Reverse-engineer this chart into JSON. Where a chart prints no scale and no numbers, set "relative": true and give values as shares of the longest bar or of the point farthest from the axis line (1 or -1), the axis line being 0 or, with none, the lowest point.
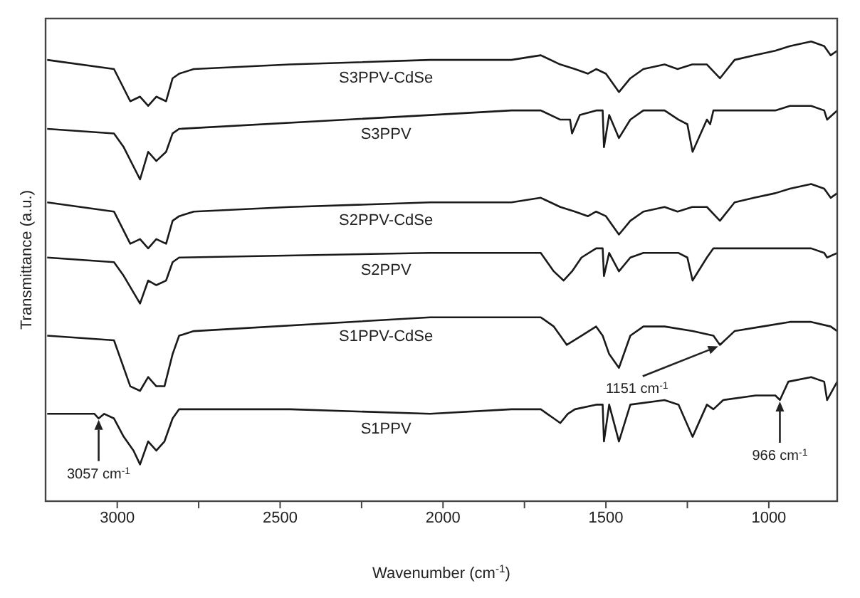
{
  "chart_data": {
    "type": "line",
    "relative": true,
    "xlabel": "Wavenumber (cm$^{-1}$)",
    "ylabel": "Transmittance (a.u.)",
    "xlim": [
      3220,
      790
    ],
    "xticks": [
      3000,
      {
        "value": 2750,
        "label": null
      },
      2500,
      {
        "value": 2250,
        "label": null
      },
      2000,
      {
        "value": 1750,
        "label": null
      },
      1500,
      {
        "value": 1250,
        "label": null
      },
      1000
    ],
    "series": [
      {
        "name": "S3PPV-CdSe",
        "color": "#1a1a1a",
        "x": [
          3215,
          3010,
          2960,
          2930,
          2905,
          2880,
          2850,
          2830,
          2810,
          2765,
          2470,
          2040,
          1790,
          1700,
          1640,
          1595,
          1555,
          1530,
          1500,
          1460,
          1425,
          1385,
          1320,
          1280,
          1235,
          1190,
          1150,
          1105,
          1045,
          980,
          935,
          870,
          830,
          810,
          790
        ],
        "values": [
          0.96,
          0.94,
          0.87,
          0.88,
          0.86,
          0.88,
          0.87,
          0.92,
          0.93,
          0.94,
          0.95,
          0.96,
          0.96,
          0.97,
          0.95,
          0.94,
          0.93,
          0.94,
          0.93,
          0.89,
          0.92,
          0.94,
          0.95,
          0.94,
          0.95,
          0.95,
          0.92,
          0.96,
          0.97,
          0.98,
          0.99,
          1.0,
          0.99,
          0.97,
          0.98
        ]
      },
      {
        "name": "S3PPV",
        "color": "#1a1a1a",
        "x": [
          3215,
          3010,
          2980,
          2930,
          2905,
          2880,
          2850,
          2830,
          2810,
          2040,
          1790,
          1700,
          1640,
          1610,
          1604,
          1580,
          1530,
          1510,
          1506,
          1490,
          1460,
          1425,
          1385,
          1320,
          1277,
          1250,
          1234,
          1190,
          1180,
          1170,
          1105,
          1020,
          980,
          935,
          870,
          830,
          821,
          790
        ],
        "values": [
          0.81,
          0.8,
          0.77,
          0.7,
          0.76,
          0.74,
          0.76,
          0.8,
          0.81,
          0.84,
          0.85,
          0.85,
          0.83,
          0.83,
          0.8,
          0.84,
          0.85,
          0.85,
          0.77,
          0.84,
          0.79,
          0.83,
          0.85,
          0.85,
          0.83,
          0.82,
          0.76,
          0.83,
          0.82,
          0.85,
          0.85,
          0.85,
          0.85,
          0.86,
          0.86,
          0.85,
          0.83,
          0.85
        ]
      },
      {
        "name": "S2PPV-CdSe",
        "color": "#1a1a1a",
        "x": [
          3215,
          3010,
          2960,
          2930,
          2905,
          2880,
          2850,
          2830,
          2810,
          2765,
          2470,
          2040,
          1790,
          1700,
          1640,
          1595,
          1555,
          1530,
          1500,
          1460,
          1425,
          1385,
          1320,
          1280,
          1235,
          1190,
          1150,
          1105,
          1045,
          980,
          935,
          870,
          830,
          810,
          790
        ],
        "values": [
          0.65,
          0.63,
          0.56,
          0.57,
          0.55,
          0.57,
          0.56,
          0.61,
          0.62,
          0.63,
          0.64,
          0.65,
          0.65,
          0.66,
          0.64,
          0.63,
          0.62,
          0.63,
          0.62,
          0.58,
          0.61,
          0.63,
          0.64,
          0.63,
          0.64,
          0.64,
          0.61,
          0.65,
          0.66,
          0.67,
          0.68,
          0.69,
          0.68,
          0.66,
          0.67
        ]
      },
      {
        "name": "S2PPV",
        "color": "#1a1a1a",
        "x": [
          3215,
          3010,
          2980,
          2930,
          2905,
          2880,
          2850,
          2830,
          2810,
          2040,
          1790,
          1700,
          1680,
          1660,
          1630,
          1604,
          1575,
          1530,
          1510,
          1506,
          1490,
          1460,
          1425,
          1385,
          1320,
          1277,
          1250,
          1234,
          1190,
          1170,
          1105,
          1020,
          935,
          870,
          830,
          821,
          790
        ],
        "values": [
          0.53,
          0.52,
          0.49,
          0.43,
          0.48,
          0.47,
          0.48,
          0.52,
          0.53,
          0.54,
          0.54,
          0.54,
          0.52,
          0.5,
          0.48,
          0.5,
          0.53,
          0.55,
          0.55,
          0.49,
          0.54,
          0.5,
          0.53,
          0.54,
          0.54,
          0.54,
          0.53,
          0.48,
          0.53,
          0.55,
          0.55,
          0.55,
          0.55,
          0.55,
          0.54,
          0.53,
          0.54
        ]
      },
      {
        "name": "S1PPV-CdSe",
        "color": "#1a1a1a",
        "x": [
          3215,
          3010,
          2990,
          2960,
          2930,
          2905,
          2880,
          2855,
          2830,
          2810,
          2765,
          2040,
          1790,
          1700,
          1660,
          1640,
          1620,
          1575,
          1530,
          1510,
          1490,
          1460,
          1425,
          1385,
          1320,
          1234,
          1170,
          1150,
          1105,
          1020,
          935,
          870,
          810,
          790
        ],
        "values": [
          0.36,
          0.35,
          0.31,
          0.25,
          0.24,
          0.27,
          0.25,
          0.25,
          0.32,
          0.36,
          0.37,
          0.4,
          0.4,
          0.4,
          0.38,
          0.36,
          0.34,
          0.36,
          0.38,
          0.36,
          0.32,
          0.29,
          0.36,
          0.38,
          0.38,
          0.37,
          0.36,
          0.34,
          0.37,
          0.38,
          0.39,
          0.39,
          0.38,
          0.37
        ]
      },
      {
        "name": "S1PPV",
        "color": "#1a1a1a",
        "x": [
          3215,
          3070,
          3057,
          3040,
          3010,
          2980,
          2950,
          2930,
          2905,
          2880,
          2855,
          2830,
          2810,
          2470,
          2040,
          1790,
          1700,
          1680,
          1660,
          1640,
          1617,
          1595,
          1530,
          1510,
          1506,
          1490,
          1460,
          1425,
          1320,
          1277,
          1234,
          1190,
          1170,
          1140,
          1040,
          980,
          966,
          940,
          870,
          830,
          821,
          790
        ],
        "values": [
          0.19,
          0.19,
          0.18,
          0.19,
          0.18,
          0.14,
          0.11,
          0.08,
          0.13,
          0.11,
          0.13,
          0.18,
          0.2,
          0.2,
          0.19,
          0.2,
          0.2,
          0.19,
          0.18,
          0.17,
          0.19,
          0.2,
          0.21,
          0.21,
          0.13,
          0.21,
          0.13,
          0.21,
          0.22,
          0.21,
          0.14,
          0.21,
          0.2,
          0.22,
          0.23,
          0.23,
          0.22,
          0.26,
          0.27,
          0.26,
          0.22,
          0.26
        ]
      }
    ],
    "annotations": [
      {
        "text": "3057 cm$^{-1}$",
        "x": 3057,
        "y": 0.18
      },
      {
        "text": "1151 cm$^{-1}$",
        "x": 1151,
        "y": 0.34
      },
      {
        "text": "966 cm$^{-1}$",
        "x": 966,
        "y": 0.22
      }
    ]
  }
}
